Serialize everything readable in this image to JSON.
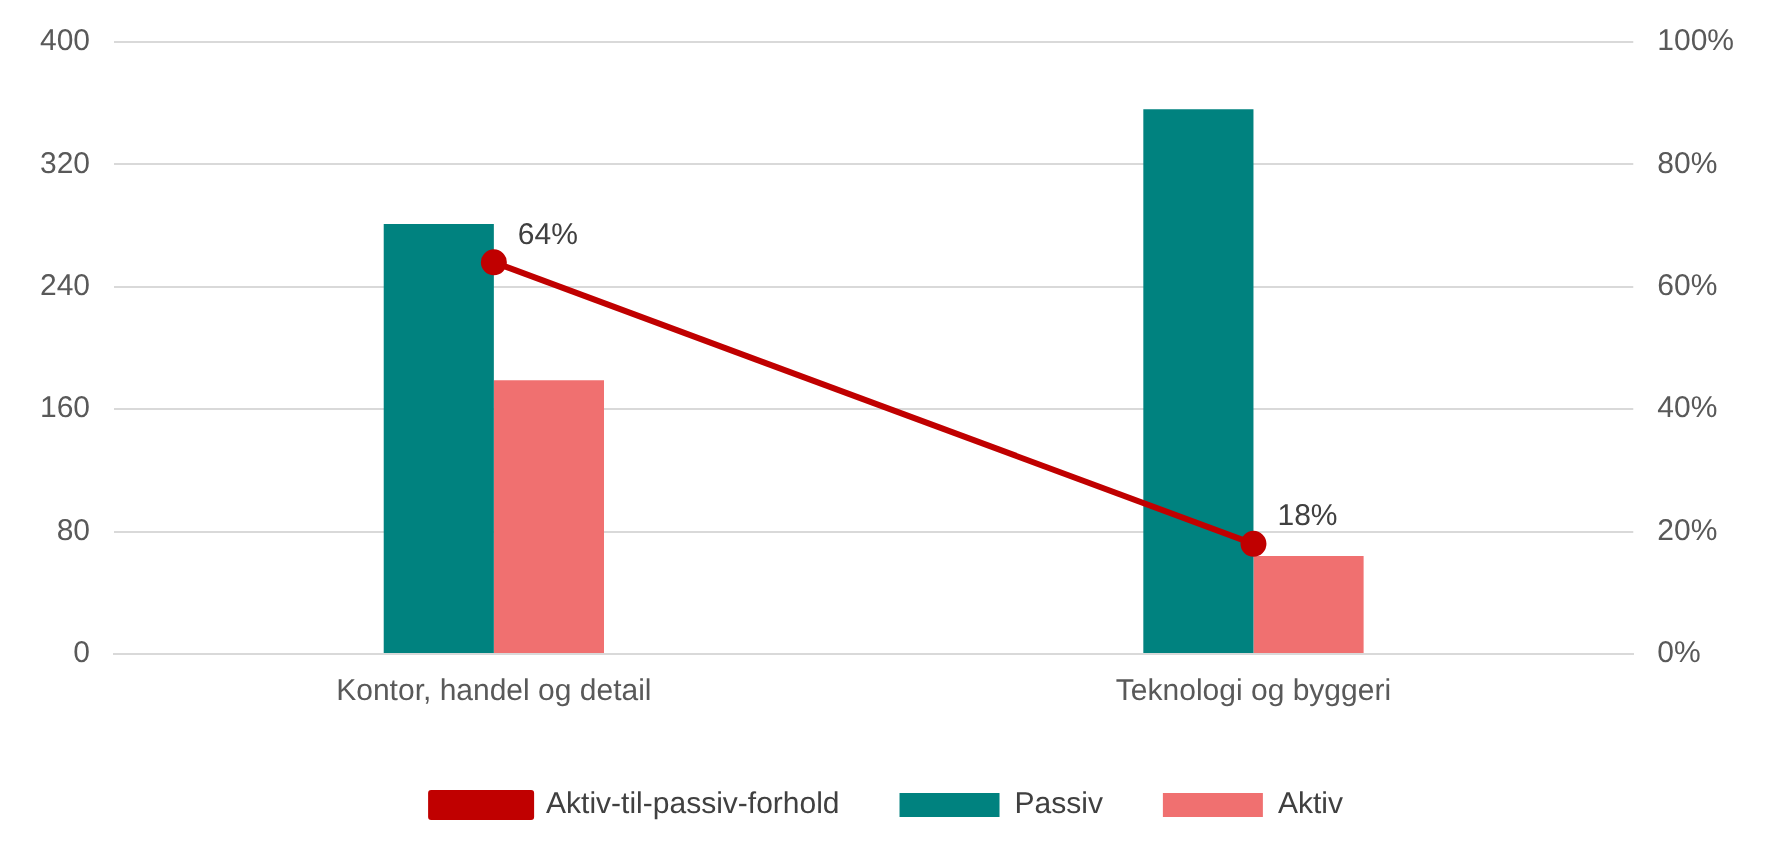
{
  "chart_data": {
    "type": "bar",
    "categories": [
      "Kontor, handel og detail",
      "Teknologi og byggeri"
    ],
    "series": [
      {
        "name": "Passiv",
        "color": "#00827f",
        "values": [
          281,
          356
        ]
      },
      {
        "name": "Aktiv",
        "color": "#f07070",
        "values": [
          179,
          64
        ]
      },
      {
        "name": "Aktiv-til-passiv-forhold",
        "type": "line",
        "axis": "y2",
        "color": "#c00000",
        "values": [
          64,
          18
        ],
        "value_labels": [
          "64%",
          "18%"
        ]
      }
    ],
    "ylim": [
      0,
      400
    ],
    "yticks": [
      0,
      80,
      160,
      240,
      320,
      400
    ],
    "y2lim": [
      0,
      100
    ],
    "y2ticks": [
      {
        "value": 0,
        "label": "0%"
      },
      {
        "value": 20,
        "label": "20%"
      },
      {
        "value": 40,
        "label": "40%"
      },
      {
        "value": 60,
        "label": "60%"
      },
      {
        "value": 80,
        "label": "80%"
      },
      {
        "value": 100,
        "label": "100%"
      }
    ],
    "grid": "y",
    "legend": "bottom",
    "marker": "circle"
  }
}
